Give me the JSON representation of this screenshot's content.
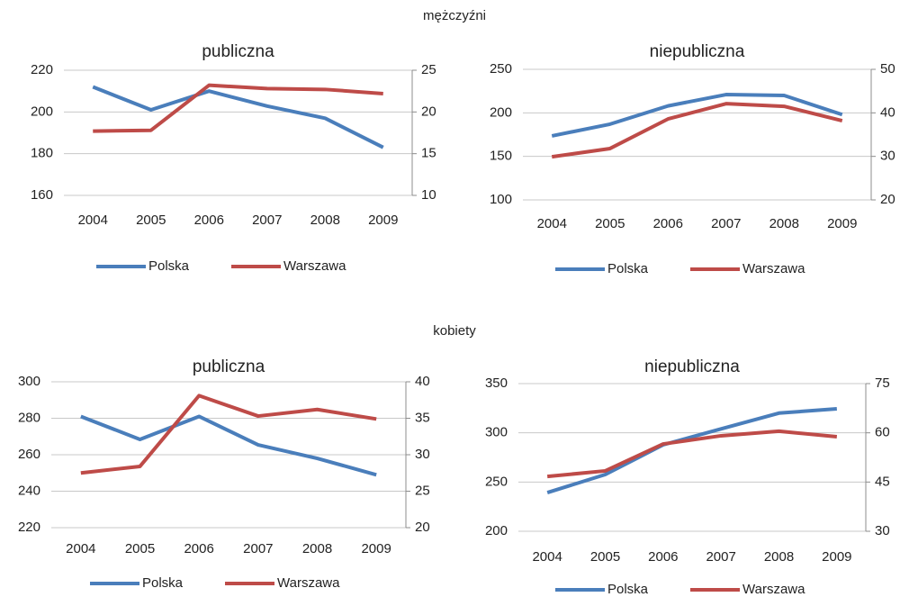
{
  "headings": [
    "mężczyźni",
    "kobiety"
  ],
  "chart_data": [
    {
      "type": "line",
      "title": "publiczna",
      "categories": [
        "2004",
        "2005",
        "2006",
        "2007",
        "2008",
        "2009"
      ],
      "series": [
        {
          "name": "Polska",
          "color": "#4a7ebb",
          "values": [
            212,
            201,
            210,
            202.8,
            197,
            183
          ]
        },
        {
          "name": "Warszawa",
          "color": "#be4b48",
          "axis": "y2",
          "values": [
            17.7,
            17.8,
            23.2,
            22.8,
            22.7,
            22.2
          ]
        }
      ],
      "ylim": [
        160,
        220
      ],
      "yticks": [
        160,
        180,
        200,
        220
      ],
      "y2lim": [
        10,
        25
      ],
      "y2ticks": [
        10,
        15,
        20,
        25
      ],
      "grid": true,
      "legend": "bottom"
    },
    {
      "type": "line",
      "title": "niepubliczna",
      "categories": [
        "2004",
        "2005",
        "2006",
        "2007",
        "2008",
        "2009"
      ],
      "series": [
        {
          "name": "Polska",
          "color": "#4a7ebb",
          "values": [
            173.5,
            187,
            208,
            221,
            220,
            198
          ]
        },
        {
          "name": "Warszawa",
          "color": "#be4b48",
          "axis": "y2",
          "values": [
            29.9,
            31.8,
            38.6,
            42.1,
            41.5,
            38.2
          ]
        }
      ],
      "ylim": [
        100,
        250
      ],
      "yticks": [
        100,
        150,
        200,
        250
      ],
      "y2lim": [
        20,
        50
      ],
      "y2ticks": [
        20,
        30,
        40,
        50
      ],
      "grid": true,
      "legend": "bottom"
    },
    {
      "type": "line",
      "title": "publiczna",
      "categories": [
        "2004",
        "2005",
        "2006",
        "2007",
        "2008",
        "2009"
      ],
      "series": [
        {
          "name": "Polska",
          "color": "#4a7ebb",
          "values": [
            281,
            268.4,
            281,
            265.4,
            258,
            249
          ]
        },
        {
          "name": "Warszawa",
          "color": "#be4b48",
          "axis": "y2",
          "values": [
            27.5,
            28.4,
            38.1,
            35.3,
            36.2,
            34.9
          ]
        }
      ],
      "ylim": [
        220,
        300
      ],
      "yticks": [
        220,
        240,
        260,
        280,
        300
      ],
      "y2lim": [
        20,
        40
      ],
      "y2ticks": [
        20,
        25,
        30,
        35,
        40
      ],
      "grid": true,
      "legend": "bottom"
    },
    {
      "type": "line",
      "title": "niepubliczna",
      "categories": [
        "2004",
        "2005",
        "2006",
        "2007",
        "2008",
        "2009"
      ],
      "series": [
        {
          "name": "Polska",
          "color": "#4a7ebb",
          "values": [
            239.3,
            257.6,
            287.8,
            304,
            320,
            324.4
          ]
        },
        {
          "name": "Warszawa",
          "color": "#be4b48",
          "axis": "y2",
          "values": [
            46.7,
            48.4,
            56.6,
            59.1,
            60.5,
            58.8
          ]
        }
      ],
      "ylim": [
        200,
        350
      ],
      "yticks": [
        200,
        250,
        300,
        350
      ],
      "y2lim": [
        30,
        75
      ],
      "y2ticks": [
        30,
        45,
        60,
        75
      ],
      "grid": true,
      "legend": "bottom"
    }
  ]
}
